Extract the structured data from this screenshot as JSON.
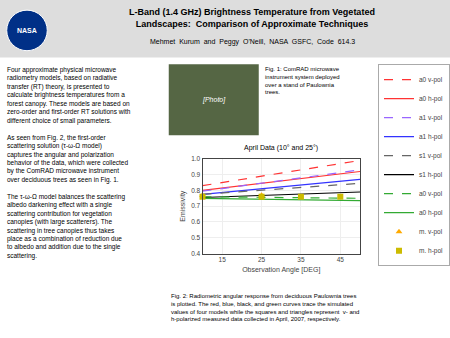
{
  "title": "L-Band (1.4 GHz) Brightness Temperature from Vegetated\nLandscapes:  Comparison of Approximate Techniques",
  "subtitle": "Mehmet  Kurum  and  Peggy  O'Neill,  NASA  GSFC,  Code  614.3",
  "logo_text": "NASA",
  "photo_label": "[Photo]",
  "text_column": [
    [
      "Four approximate physical microwave",
      "radiometry models, based on radiative",
      "transfer (RT) theory, is presented to",
      "calculate brightness temperatures from a",
      "forest canopy. These models are based on",
      "zero-order and first-order RT solutions with",
      "different choice of small parameters."
    ],
    [
      "As seen from Fig. 2, the first-order",
      "scattering solution (τ-ω-Ω model)",
      "captures the angular and polarization",
      "behavior of the data, which were collected",
      "by the ComRAD microwave instrument",
      "over deciduous trees as seen in Fig. 1."
    ],
    [
      "The τ-ω-Ω model balances the scattering",
      "albedo darkening effect with a single",
      "scattering contribution for vegetation",
      "canopies (with large scatterers). The",
      "scattering in tree canopies thus takes",
      "place as a combination of reduction due",
      "to albedo and addition due to the single",
      "scattering."
    ]
  ],
  "fig1_caption": "Fig. 1: ComRAD microwave\ninstrument system deployed\nover a stand of Paulownia\ntrees.",
  "fig2_caption": "Fig. 2: Radiometric angular response from deciduous Paulownia trees\nis plotted. The red, blue, black, and green curves trace the simulated\nvalues of four models while the squares and triangles represent  v- and\nh-polarized measured data collected in April, 2007, respectively.",
  "chart_data": {
    "type": "line",
    "title": "April Data (10° and 25°)",
    "xlabel": "Observation Angle [DEG]",
    "ylabel": "Emissivity",
    "xlim": [
      10,
      50
    ],
    "ylim": [
      0.4,
      1.0
    ],
    "xticks": [
      15,
      25,
      35,
      45
    ],
    "yticks": [
      0.4,
      0.5,
      0.6,
      0.7,
      0.8,
      0.9,
      {
        "value": 1.0,
        "label": "1.0"
      }
    ],
    "grid": true,
    "legend": "right",
    "series": [
      {
        "name": "a0 v-pol",
        "type": "line",
        "color": "#FF3333",
        "line_style": "dashed",
        "x": [
          10,
          50
        ],
        "values": [
          0.83,
          0.99
        ]
      },
      {
        "name": "a0 h-pol",
        "type": "line",
        "color": "#FF3333",
        "line_style": "solid",
        "x": [
          10,
          50
        ],
        "values": [
          0.8,
          0.92
        ]
      },
      {
        "name": "a1 v-pol",
        "type": "line",
        "color": "#9966FF",
        "line_style": "dashed",
        "x": [
          10,
          50
        ],
        "values": [
          0.795,
          0.93
        ]
      },
      {
        "name": "a1 h-pol",
        "type": "line",
        "color": "#3333FF",
        "line_style": "solid",
        "x": [
          10,
          50
        ],
        "values": [
          0.775,
          0.87
        ]
      },
      {
        "name": "s1 v-pol",
        "type": "line",
        "color": "#666666",
        "line_style": "dashed",
        "x": [
          10,
          50
        ],
        "values": [
          0.775,
          0.845
        ]
      },
      {
        "name": "s1 h-pol",
        "type": "line",
        "color": "#000000",
        "line_style": "solid",
        "x": [
          10,
          50
        ],
        "values": [
          0.755,
          0.79
        ]
      },
      {
        "name": "a0 v-pol",
        "type": "line",
        "color": "#33AA33",
        "line_style": "dashed",
        "x": [
          10,
          50
        ],
        "values": [
          0.76,
          0.75
        ]
      },
      {
        "name": "a0 h-pol",
        "type": "line",
        "color": "#33AA33",
        "line_style": "solid",
        "x": [
          10,
          50
        ],
        "values": [
          0.75,
          0.735
        ]
      },
      {
        "name": "m. v-pol",
        "type": "scatter",
        "color": "#FFAA00",
        "marker": "triangle-up",
        "x": [
          10,
          25
        ],
        "values": [
          0.77,
          0.77
        ]
      },
      {
        "name": "m. h-pol",
        "type": "scatter",
        "color": "#CCBB00",
        "marker": "square",
        "x": [
          10,
          25,
          35,
          45
        ],
        "values": [
          0.76,
          0.76,
          0.76,
          0.76
        ]
      }
    ]
  }
}
